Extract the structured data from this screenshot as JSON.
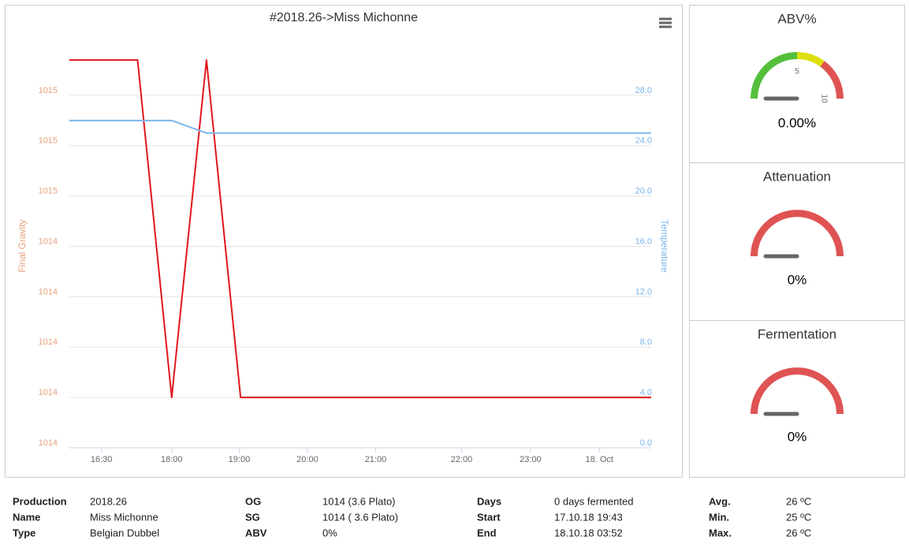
{
  "chart_data": {
    "type": "line",
    "title": "#2018.26->Miss Michonne",
    "ylabel": "Final Gravity",
    "y2label": "Temperature",
    "x": [
      16.5,
      17.5,
      18.0,
      18.51,
      19.01,
      25.03
    ],
    "xlim": [
      16.5,
      25.03
    ],
    "xticks": [
      {
        "value": 16.97,
        "label": "16:30"
      },
      {
        "value": 18.0,
        "label": "18:00"
      },
      {
        "value": 18.99,
        "label": "19:00"
      },
      {
        "value": 19.99,
        "label": "20:00"
      },
      {
        "value": 20.99,
        "label": "21:00"
      },
      {
        "value": 22.25,
        "label": "22:00"
      },
      {
        "value": 23.26,
        "label": "23:00"
      },
      {
        "value": 24.27,
        "label": "18. Oct"
      }
    ],
    "ylim": [
      1014.0,
      1014.8
    ],
    "yticks": [
      {
        "value": 1014.0,
        "label": "1014"
      },
      {
        "value": 1014.1,
        "label": "1014"
      },
      {
        "value": 1014.2,
        "label": "1014"
      },
      {
        "value": 1014.3,
        "label": "1014"
      },
      {
        "value": 1014.4,
        "label": "1014"
      },
      {
        "value": 1014.5,
        "label": "1015"
      },
      {
        "value": 1014.6,
        "label": "1015"
      },
      {
        "value": 1014.7,
        "label": "1015"
      }
    ],
    "y2lim": [
      0,
      32
    ],
    "y2ticks": [
      {
        "value": 0,
        "label": "0.0"
      },
      {
        "value": 4,
        "label": "4.0"
      },
      {
        "value": 8,
        "label": "8.0"
      },
      {
        "value": 12,
        "label": "12.0"
      },
      {
        "value": 16,
        "label": "16.0"
      },
      {
        "value": 20,
        "label": "20.0"
      },
      {
        "value": 24,
        "label": "24.0"
      },
      {
        "value": 28,
        "label": "28.0"
      }
    ],
    "grid": true,
    "series": [
      {
        "name": "Final Gravity",
        "color": "#e0161c",
        "values": [
          1014.77,
          1014.77,
          1014.1,
          1014.77,
          1014.1,
          1014.1
        ]
      },
      {
        "name": "Temperature",
        "color": "#7cb5ec",
        "axis": "y2",
        "values": [
          26.0,
          26.0,
          26.0,
          25.0,
          25.0,
          25.0
        ]
      }
    ]
  },
  "gauges": [
    {
      "title": "ABV%",
      "value": 0,
      "value_label": "0.00%",
      "min": 0,
      "max": 10,
      "ticks": [
        5,
        10
      ],
      "bands": [
        {
          "from": 0,
          "to": 5,
          "color": "#55bf3b"
        },
        {
          "from": 5,
          "to": 7,
          "color": "#dddf0d"
        },
        {
          "from": 7,
          "to": 10,
          "color": "#df5353"
        }
      ]
    },
    {
      "title": "Attenuation",
      "value": 0,
      "value_label": "0%",
      "min": 0,
      "max": 100,
      "ticks": [],
      "bands": [
        {
          "from": 0,
          "to": 100,
          "color": "#df5353"
        }
      ]
    },
    {
      "title": "Fermentation",
      "value": 0,
      "value_label": "0%",
      "min": 0,
      "max": 100,
      "ticks": [],
      "bands": [
        {
          "from": 0,
          "to": 100,
          "color": "#df5353"
        }
      ]
    }
  ],
  "info": {
    "columns": [
      {
        "rows": [
          {
            "label": "Production",
            "value": "2018.26"
          },
          {
            "label": "Name",
            "value": "Miss Michonne"
          },
          {
            "label": "Type",
            "value": "Belgian Dubbel"
          }
        ]
      },
      {
        "rows": [
          {
            "label": "OG",
            "value": "1014 (3.6 Plato)"
          },
          {
            "label": "SG",
            "value": "1014 ( 3.6 Plato)"
          },
          {
            "label": "ABV",
            "value": "0%"
          }
        ]
      },
      {
        "rows": [
          {
            "label": "Days",
            "value": "0 days fermented"
          },
          {
            "label": "Start",
            "value": "17.10.18 19:43"
          },
          {
            "label": "End",
            "value": "18.10.18 03:52"
          }
        ]
      },
      {
        "rows": [
          {
            "label": "Avg.",
            "value": "26 ºC"
          },
          {
            "label": "Min.",
            "value": "25 ºC"
          },
          {
            "label": "Max.",
            "value": "26 ºC"
          }
        ]
      }
    ]
  }
}
